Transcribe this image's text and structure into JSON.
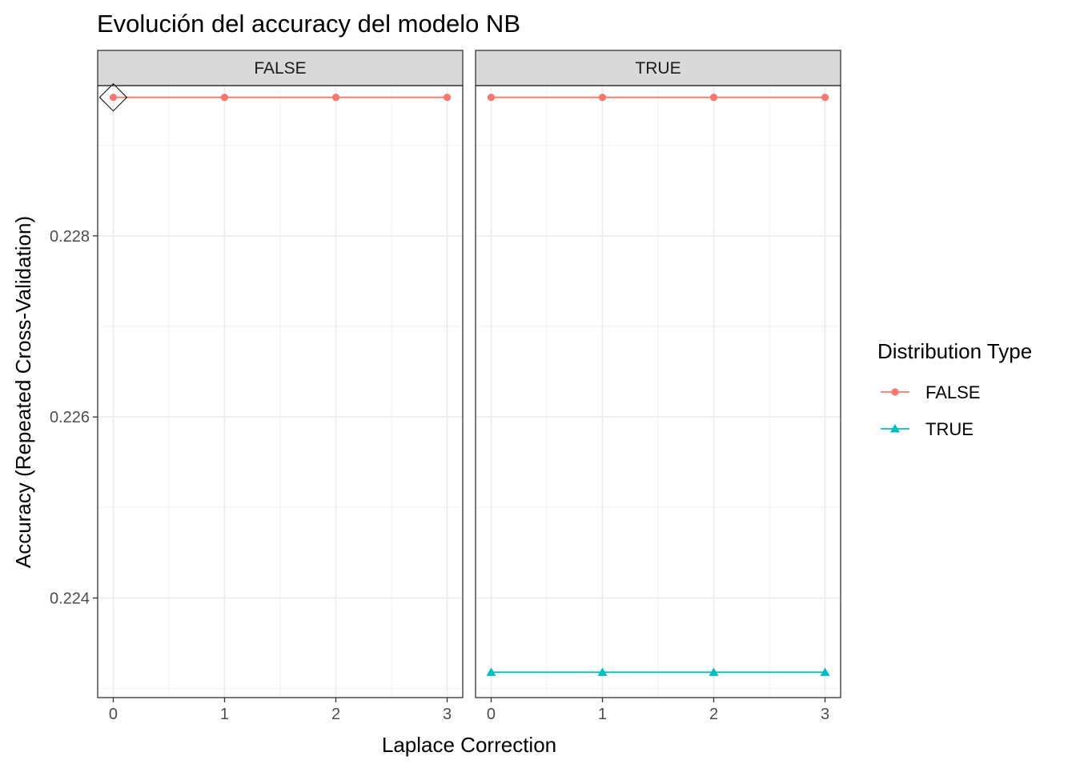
{
  "chart_data": {
    "type": "line",
    "title": "Evolución del accuracy del modelo NB",
    "xlabel": "Laplace Correction",
    "ylabel": "Accuracy (Repeated Cross-Validation)",
    "x_ticks": [
      "0",
      "1",
      "2",
      "3"
    ],
    "y_ticks": [
      "0.224",
      "0.226",
      "0.228"
    ],
    "xlim": [
      -0.14,
      3.14
    ],
    "ylim": [
      0.2229,
      0.22966
    ],
    "grid": true,
    "facet_title": "",
    "panels": [
      {
        "strip": "FALSE",
        "series": [
          {
            "name": "FALSE",
            "x": [
              0,
              1,
              2,
              3
            ],
            "y": [
              0.22953,
              0.22953,
              0.22953,
              0.22953
            ]
          }
        ],
        "highlight": {
          "x": 0,
          "y": 0.22953
        }
      },
      {
        "strip": "TRUE",
        "series": [
          {
            "name": "FALSE",
            "x": [
              0,
              1,
              2,
              3
            ],
            "y": [
              0.22953,
              0.22953,
              0.22953,
              0.22953
            ]
          },
          {
            "name": "TRUE",
            "x": [
              0,
              1,
              2,
              3
            ],
            "y": [
              0.22318,
              0.22318,
              0.22318,
              0.22318
            ]
          }
        ]
      }
    ],
    "legend": {
      "title": "Distribution Type",
      "position": "right",
      "entries": [
        {
          "label": "FALSE",
          "color": "#F8766D",
          "shape": "circle"
        },
        {
          "label": "TRUE",
          "color": "#00BFC4",
          "shape": "triangle"
        }
      ]
    }
  }
}
